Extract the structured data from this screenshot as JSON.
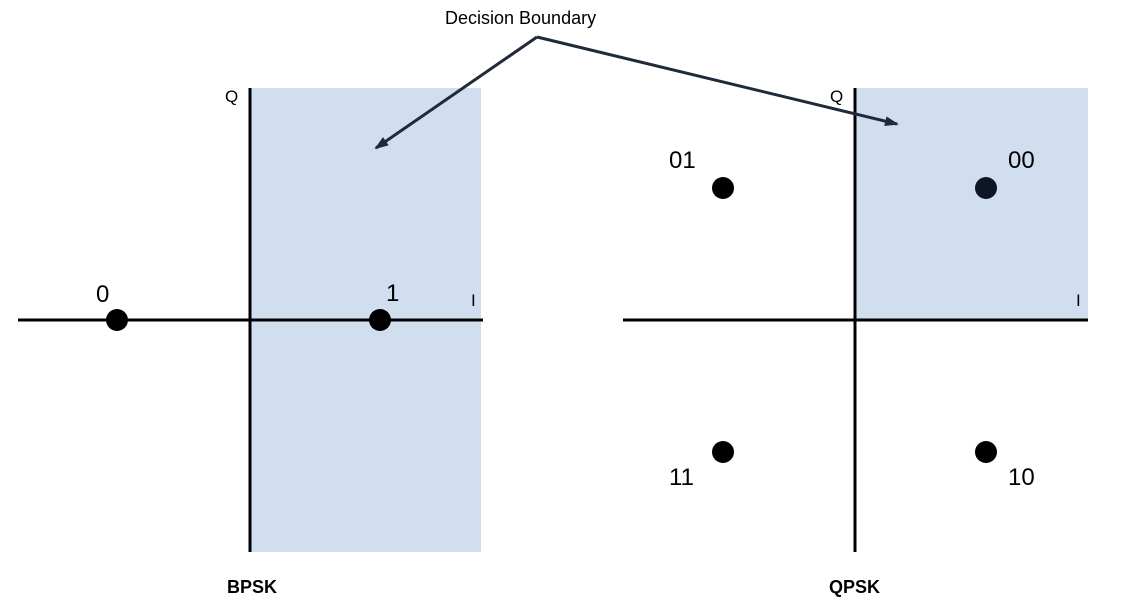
{
  "callout": {
    "text": "Decision Boundary"
  },
  "bpsk": {
    "title": "BPSK",
    "axis_i": "I",
    "axis_q": "Q",
    "symbols": [
      {
        "label": "0"
      },
      {
        "label": "1"
      }
    ]
  },
  "qpsk": {
    "title": "QPSK",
    "axis_i": "I",
    "axis_q": "Q",
    "symbols": [
      {
        "label": "01"
      },
      {
        "label": "00"
      },
      {
        "label": "11"
      },
      {
        "label": "10"
      }
    ]
  },
  "colors": {
    "region_fill": "#d0deef",
    "ink": "#000000",
    "arrow": "#1f2a3a"
  }
}
